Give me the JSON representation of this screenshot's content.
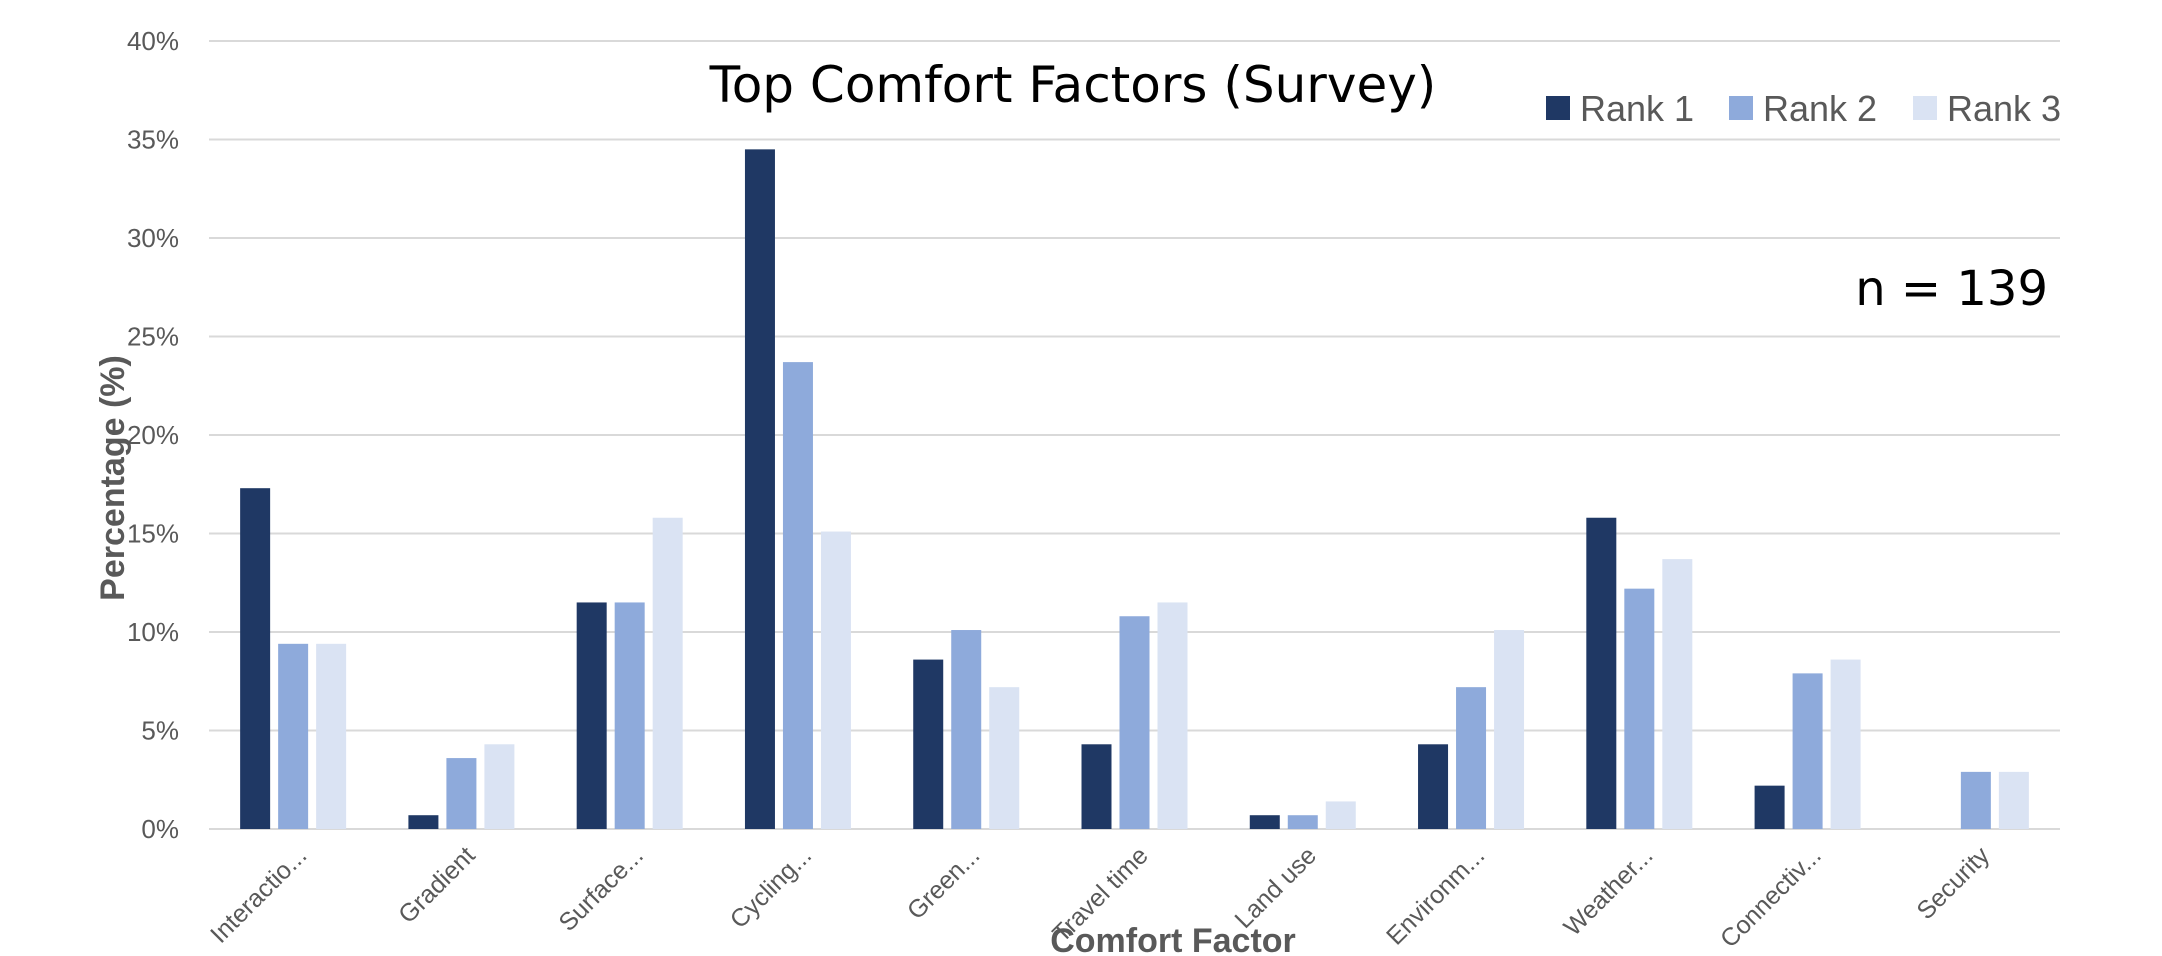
{
  "chart_data": {
    "type": "bar",
    "title": "Top Comfort Factors (Survey)",
    "xlabel": "Comfort Factor",
    "ylabel": "Percentage (%)",
    "annotation": "n = 139",
    "ylim": [
      0,
      40
    ],
    "yticks": [
      "0%",
      "5%",
      "10%",
      "15%",
      "20%",
      "25%",
      "30%",
      "35%",
      "40%"
    ],
    "grid": true,
    "legend_position": "top-right",
    "categories": [
      "Interactio...",
      "Gradient",
      "Surface...",
      "Cycling...",
      "Green...",
      "Travel time",
      "Land use",
      "Environm...",
      "Weather...",
      "Connectiv...",
      "Security"
    ],
    "series": [
      {
        "name": "Rank 1",
        "color": "#1f3864",
        "values": [
          17.3,
          0.7,
          11.5,
          34.5,
          8.6,
          4.3,
          0.7,
          4.3,
          15.8,
          2.2,
          0
        ]
      },
      {
        "name": "Rank 2",
        "color": "#8eaadb",
        "values": [
          9.4,
          3.6,
          11.5,
          23.7,
          10.1,
          10.8,
          0.7,
          7.2,
          12.2,
          7.9,
          2.9
        ]
      },
      {
        "name": "Rank 3",
        "color": "#dae3f3",
        "values": [
          9.4,
          4.3,
          15.8,
          15.1,
          7.2,
          11.5,
          1.4,
          10.1,
          13.7,
          8.6,
          2.9
        ]
      }
    ]
  }
}
